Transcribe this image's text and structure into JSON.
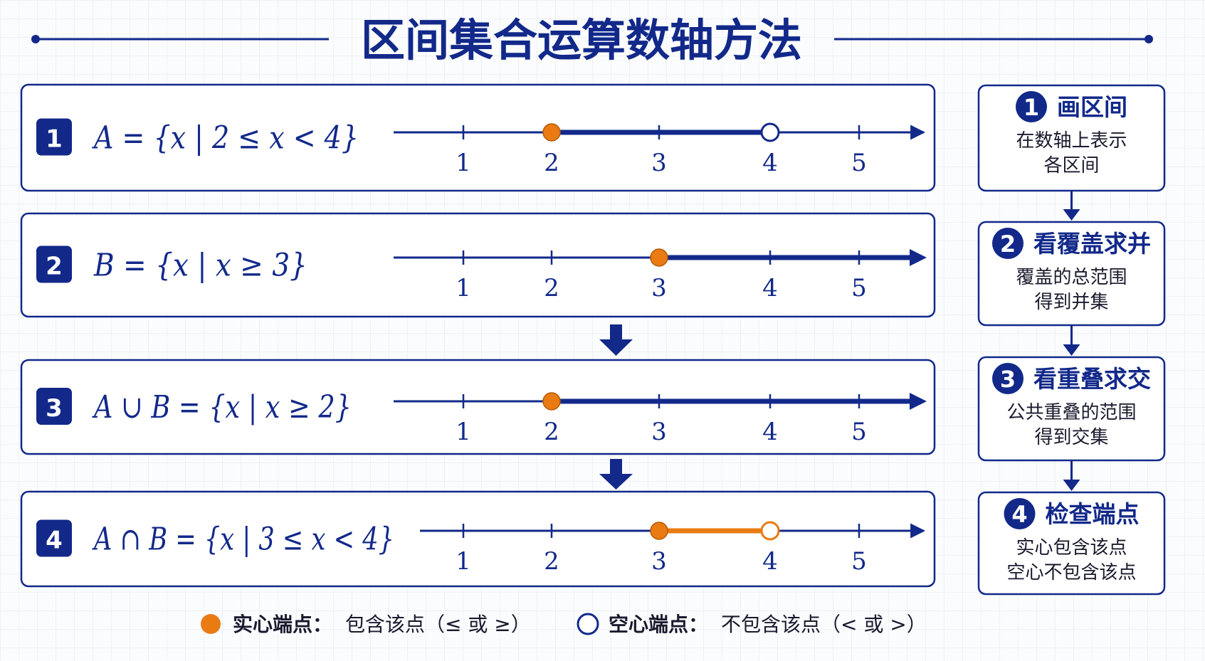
{
  "title": "区间集合运算数轴方法",
  "colors": {
    "navy": "#12298a",
    "orange": "#ea7a12",
    "white": "#ffffff"
  },
  "axis": {
    "ticks": [
      1,
      2,
      3,
      4,
      5
    ]
  },
  "rows": [
    {
      "num": "1",
      "formula": "A = {x | 2 ≤ x < 4}",
      "interval": {
        "from": 2,
        "to": 4,
        "from_closed": true,
        "to_closed": false,
        "to_infinity": false,
        "color": "navy"
      }
    },
    {
      "num": "2",
      "formula": "B = {x | x ≥ 3}",
      "interval": {
        "from": 3,
        "to": null,
        "from_closed": true,
        "to_closed": false,
        "to_infinity": true,
        "color": "navy"
      }
    },
    {
      "num": "3",
      "formula": "A ∪ B = {x | x ≥ 2}",
      "interval": {
        "from": 2,
        "to": null,
        "from_closed": true,
        "to_closed": false,
        "to_infinity": true,
        "color": "navy"
      }
    },
    {
      "num": "4",
      "formula": "A ∩ B = {x | 3 ≤ x < 4}",
      "interval": {
        "from": 3,
        "to": 4,
        "from_closed": true,
        "to_closed": false,
        "to_infinity": false,
        "color": "orange"
      }
    }
  ],
  "steps": [
    {
      "num": "1",
      "title": "画区间",
      "desc": [
        "在数轴上表示",
        "各区间"
      ]
    },
    {
      "num": "2",
      "title": "看覆盖求并",
      "desc": [
        "覆盖的总范围",
        "得到并集"
      ]
    },
    {
      "num": "3",
      "title": "看重叠求交",
      "desc": [
        "公共重叠的范围",
        "得到交集"
      ]
    },
    {
      "num": "4",
      "title": "检查端点",
      "desc": [
        "实心包含该点",
        "空心不包含该点"
      ]
    }
  ],
  "legend": {
    "solid_label": "实心端点：",
    "solid_desc": "包含该点（≤ 或 ≥）",
    "hollow_label": "空心端点：",
    "hollow_desc": "不包含该点（< 或 >）"
  }
}
